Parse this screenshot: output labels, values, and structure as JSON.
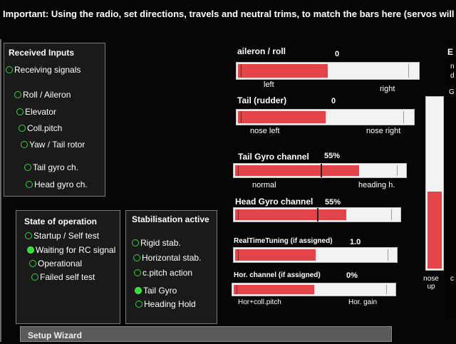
{
  "banner": {
    "text": "Important: Using the radio, set directions, travels and neutral trims, to match the bars here (servos will not move)"
  },
  "received_inputs": {
    "title": "Received Inputs",
    "items": [
      {
        "label": "Receiving signals",
        "on": false
      },
      {
        "label": "Roll / Aileron",
        "on": false
      },
      {
        "label": "Elevator",
        "on": false
      },
      {
        "label": "Coll.pitch",
        "on": false
      },
      {
        "label": "Yaw / Tail rotor",
        "on": false
      },
      {
        "label": "Tail gyro ch.",
        "on": false
      },
      {
        "label": "Head gyro ch.",
        "on": false
      }
    ]
  },
  "state_of_operation": {
    "title": "State of operation",
    "items": [
      {
        "label": "Startup / Self test",
        "on": false
      },
      {
        "label": "Waiting for RC signal",
        "on": true
      },
      {
        "label": "Operational",
        "on": false
      },
      {
        "label": "Failed self test",
        "on": false
      }
    ]
  },
  "stabilisation": {
    "title": "Stabilisation active",
    "items": [
      {
        "label": "Rigid stab.",
        "on": false
      },
      {
        "label": "Horizontal stab.",
        "on": false
      },
      {
        "label": "c.pitch action",
        "on": false
      },
      {
        "label": "Tail Gyro",
        "on": true
      },
      {
        "label": "Heading Hold",
        "on": false
      }
    ]
  },
  "bars": {
    "aileron": {
      "title": "aileron / roll",
      "value": "0",
      "fill": 0.5,
      "left_label": "left",
      "right_label": "right"
    },
    "tail": {
      "title": "Tail (rudder)",
      "value": "0",
      "fill": 0.5,
      "left_label": "nose left",
      "right_label": "nose right"
    },
    "tail_gyro": {
      "title": "Tail Gyro channel",
      "value": "55%",
      "fill": 0.73,
      "left_label": "normal",
      "right_label": "heading h."
    },
    "head_gyro": {
      "title": "Head Gyro channel",
      "value": "55%",
      "fill": 0.68,
      "left_label": "",
      "right_label": ""
    },
    "rtt": {
      "title": "RealTimeTuning (if assigned)",
      "value": "1.0",
      "fill": 0.5,
      "left_label": "",
      "right_label": ""
    },
    "hor": {
      "title": "Hor. channel (if assigned)",
      "value": "0%",
      "fill": 0.5,
      "left_label": "Hor+coll.pitch",
      "right_label": "Hor. gain"
    }
  },
  "vertical_bar": {
    "fill": 0.45,
    "label_line1": "nose",
    "label_line2": "up"
  },
  "cut_text": {
    "right_top": "E",
    "right_g": "G",
    "right_small1": "n",
    "right_small2": "d",
    "right_small3": "c"
  },
  "wizard": {
    "label": "Setup Wizard"
  }
}
